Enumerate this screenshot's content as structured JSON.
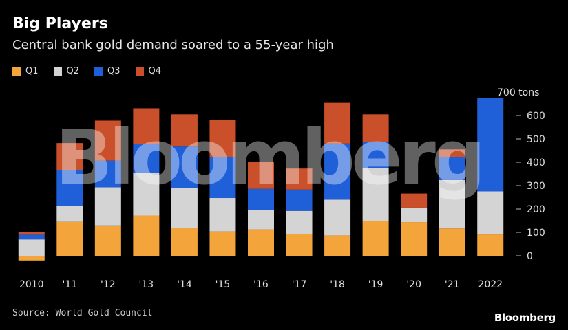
{
  "title": "Big Players",
  "subtitle": "Central bank gold demand soared to a 55-year high",
  "source": "Source: World Gold Council",
  "brand": "Bloomberg",
  "watermark": "Bloomberg",
  "colors": {
    "Q1": "#f3a43a",
    "Q2": "#d4d4d4",
    "Q3": "#1f5fd8",
    "Q4": "#c9502a",
    "background": "#000000"
  },
  "chart_data": {
    "type": "bar",
    "stacked": true,
    "title": "Big Players",
    "subtitle": "Central bank gold demand soared to a 55-year high",
    "unit_label": "700 tons",
    "categories": [
      "2010",
      "'11",
      "'12",
      "'13",
      "'14",
      "'15",
      "'16",
      "'17",
      "'18",
      "'19",
      "'20",
      "'21",
      "2022"
    ],
    "series": [
      {
        "name": "Q1",
        "values": [
          -20,
          145,
          127,
          172,
          120,
          104,
          113,
          94,
          87,
          148,
          144,
          117,
          91
        ]
      },
      {
        "name": "Q2",
        "values": [
          70,
          68,
          166,
          181,
          170,
          143,
          82,
          98,
          153,
          228,
          62,
          207,
          184
        ]
      },
      {
        "name": "Q3",
        "values": [
          20,
          152,
          114,
          126,
          177,
          174,
          91,
          91,
          240,
          112,
          0,
          99,
          399
        ]
      },
      {
        "name": "Q4",
        "values": [
          10,
          117,
          171,
          152,
          138,
          160,
          117,
          90,
          174,
          117,
          60,
          32,
          0
        ]
      }
    ],
    "ylim": [
      -25,
      700
    ],
    "yticks": [
      0,
      100,
      200,
      300,
      400,
      500,
      600
    ],
    "ytick_labels": [
      "0",
      "100",
      "200",
      "300",
      "400",
      "500",
      "600"
    ],
    "yaxis_side": "right",
    "grid": false,
    "legend_placement": "top-left"
  }
}
